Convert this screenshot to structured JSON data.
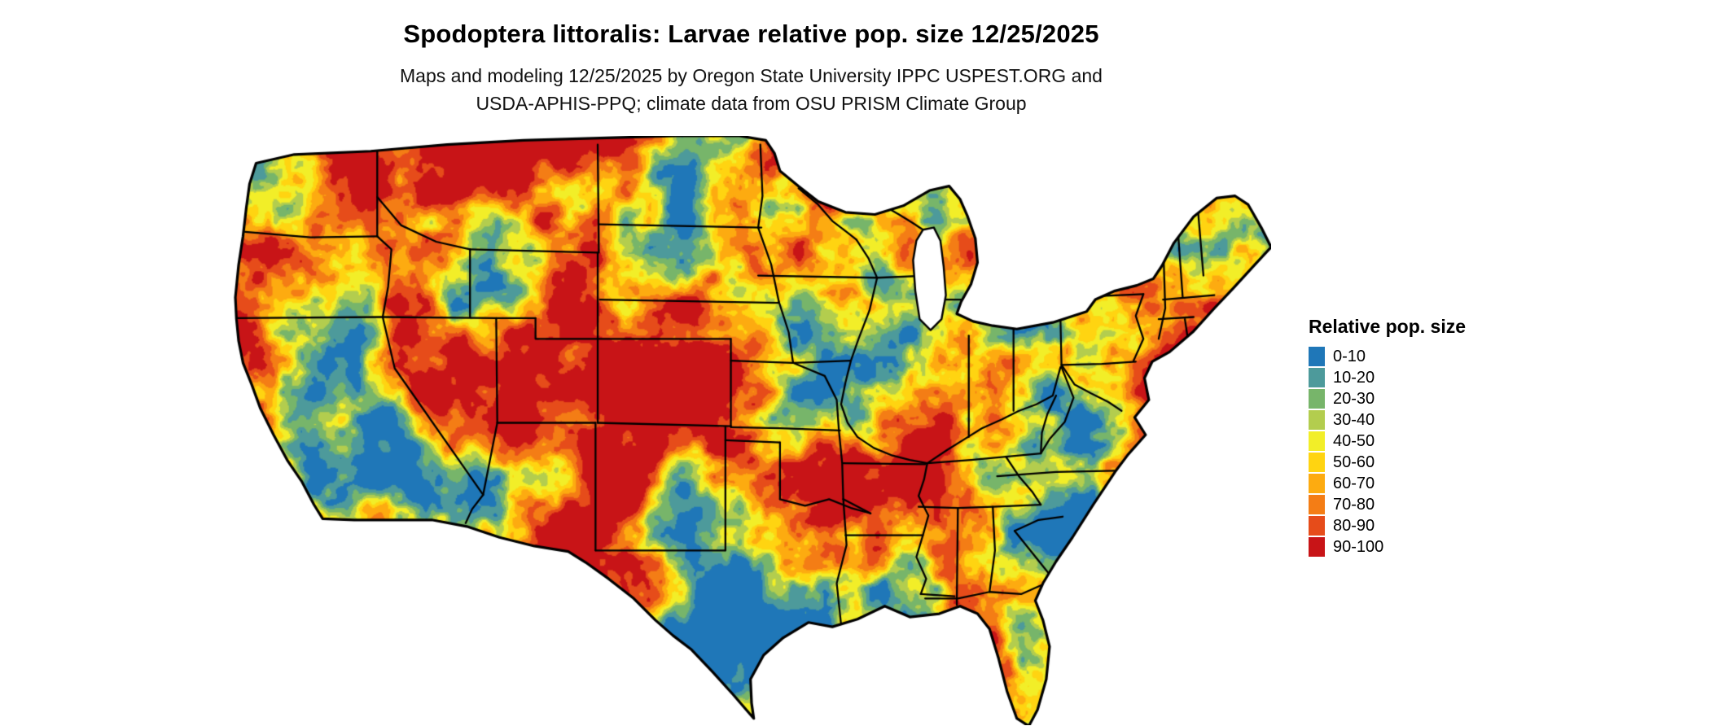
{
  "header": {
    "title": "Spodoptera littoralis: Larvae relative pop. size 12/25/2025",
    "subtitle_line1": "Maps and modeling 12/25/2025 by Oregon State University IPPC USPEST.ORG and",
    "subtitle_line2": "USDA-APHIS-PPQ; climate data from OSU PRISM Climate Group"
  },
  "legend": {
    "title": "Relative pop. size",
    "items": [
      {
        "label": "0-10",
        "color": "#1f77b8"
      },
      {
        "label": "10-20",
        "color": "#4d9a9b"
      },
      {
        "label": "20-30",
        "color": "#77b56a"
      },
      {
        "label": "30-40",
        "color": "#b3cd4e"
      },
      {
        "label": "40-50",
        "color": "#f2ee28"
      },
      {
        "label": "50-60",
        "color": "#ffd411"
      },
      {
        "label": "60-70",
        "color": "#fdab10"
      },
      {
        "label": "70-80",
        "color": "#f47d15"
      },
      {
        "label": "80-90",
        "color": "#e64c1a"
      },
      {
        "label": "90-100",
        "color": "#c81417"
      }
    ]
  },
  "map": {
    "region": "Contiguous United States",
    "type": "raster population-size map",
    "border_color": "#000000",
    "water_color": "#ffffff",
    "background_color": "#ffffff"
  }
}
